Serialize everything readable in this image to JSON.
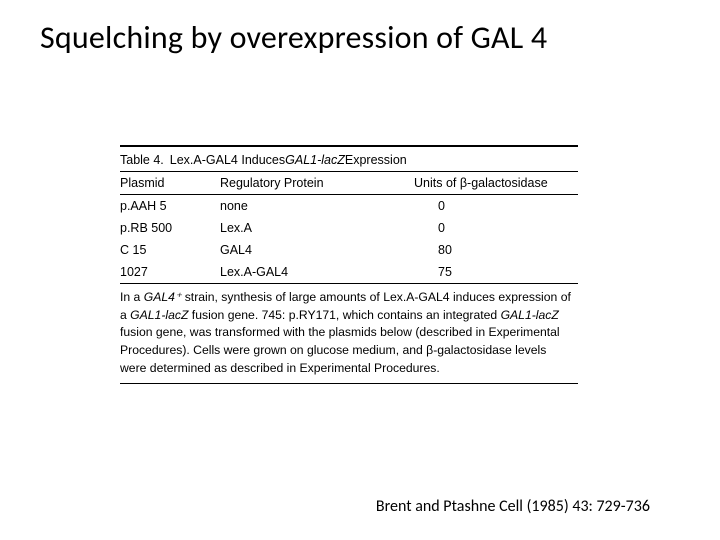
{
  "title": "Squelching by overexpression of GAL 4",
  "table": {
    "caption_lead": "Table 4.",
    "caption_rest_pre": "Lex.A-GAL4 Induces ",
    "caption_ital": "GAL1-lacZ",
    "caption_rest_post": " Expression",
    "headers": {
      "c1": "Plasmid",
      "c2": "Regulatory Protein",
      "c3": "Units of β-galactosidase"
    },
    "rows": [
      {
        "c1": "p.AAH 5",
        "c2": "none",
        "c3": "0"
      },
      {
        "c1": "p.RB 500",
        "c2": "Lex.A",
        "c3": "0"
      },
      {
        "c1": "C 15",
        "c2": "GAL4",
        "c3": "80"
      },
      {
        "c1": "1027",
        "c2": "Lex.A-GAL4",
        "c3": "75"
      }
    ],
    "footnote": {
      "seg1": "In a ",
      "ital1": "GAL4⁺",
      "seg2": " strain, synthesis of large amounts of Lex.A-GAL4 induces expression of a ",
      "ital2": "GAL1-lacZ",
      "seg3": " fusion gene. 745: p.RY171, which contains an integrated ",
      "ital3": "GAL1-lacZ",
      "seg4": " fusion gene, was transformed with the plasmids below (described in Experimental Procedures). Cells were grown on glucose medium, and β-galactosidase levels were determined as described in Experimental Procedures."
    }
  },
  "citation": "Brent and Ptashne Cell (1985) 43: 729-736",
  "colors": {
    "text": "#000000",
    "background": "#ffffff",
    "rule": "#000000"
  },
  "fontsize": {
    "title": 32,
    "table": 12.5,
    "citation": 16
  }
}
